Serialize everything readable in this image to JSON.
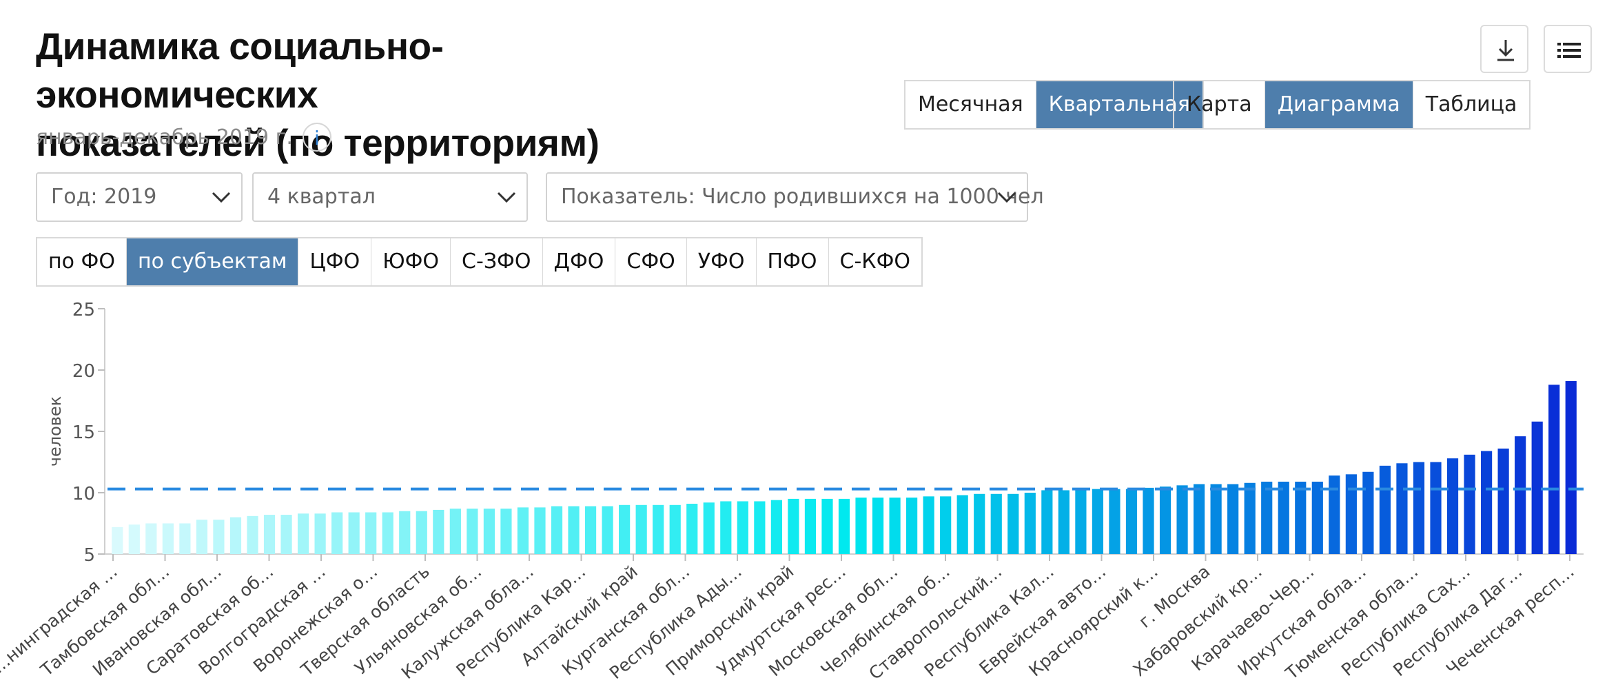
{
  "header": {
    "title_line1": "Динамика социально-экономических",
    "title_line2": "показателей (по территориям)",
    "period": "январь-декабрь 2019 г.",
    "info_icon": "i"
  },
  "toolbar": {
    "download_icon": "download-icon",
    "menu_icon": "list-menu-icon"
  },
  "periodicity": {
    "options": [
      "Месячная",
      "Квартальная"
    ],
    "active": 1
  },
  "view_mode": {
    "options": [
      "Карта",
      "Диаграмма",
      "Таблица"
    ],
    "active": 1
  },
  "filters": {
    "year": "Год: 2019",
    "quarter": "4 квартал",
    "indicator": "Показатель: Число родившихся на 1000 чел"
  },
  "region_tabs": {
    "items": [
      "по ФО",
      "по субъектам",
      "ЦФО",
      "ЮФО",
      "С-ЗФО",
      "ДФО",
      "СФО",
      "УФО",
      "ПФО",
      "С-КФО"
    ],
    "active": 1
  },
  "colors": {
    "accent": "#4e7eac",
    "average_line": "#2a8ae0",
    "bar_low": "#d9fafd",
    "bar_mid": "#00e9ef",
    "bar_high": "#0a2bd6"
  },
  "chart_data": {
    "type": "bar",
    "ylabel": "человек",
    "ylim": [
      5,
      25
    ],
    "yticks": [
      5,
      10,
      15,
      20,
      25
    ],
    "average": 10.3,
    "average_line": "dashed",
    "x_labels": [
      "…нинградская …",
      "Тамбовская обл…",
      "Ивановская обл…",
      "Саратовская об…",
      "Волгоградская …",
      "Воронежская о…",
      "Тверская область",
      "Ульяновская об…",
      "Калужская обла…",
      "Республика Кар…",
      "Алтайский край",
      "Курганская обл…",
      "Республика Ады…",
      "Приморский край",
      "Удмуртская рес…",
      "Московская обл…",
      "Челябинская об…",
      "Ставропольский…",
      "Республика Кал…",
      "Еврейская авто…",
      "Красноярский к…",
      "г. Москва",
      "Хабаровский кр…",
      "Карачаево-Чер…",
      "Иркутская обла…",
      "Тюменская обла…",
      "Республика Сах…",
      "Республика Даг…",
      "Чеченская респ…"
    ],
    "values": [
      7.2,
      7.4,
      7.5,
      7.5,
      7.5,
      7.8,
      7.8,
      8.0,
      8.1,
      8.2,
      8.2,
      8.3,
      8.3,
      8.4,
      8.4,
      8.4,
      8.4,
      8.5,
      8.5,
      8.6,
      8.7,
      8.7,
      8.7,
      8.7,
      8.8,
      8.8,
      8.9,
      8.9,
      8.9,
      8.9,
      9.0,
      9.0,
      9.0,
      9.0,
      9.1,
      9.2,
      9.3,
      9.3,
      9.3,
      9.4,
      9.5,
      9.5,
      9.5,
      9.5,
      9.6,
      9.6,
      9.6,
      9.6,
      9.7,
      9.7,
      9.8,
      9.9,
      9.9,
      9.9,
      10.0,
      10.2,
      10.2,
      10.3,
      10.3,
      10.3,
      10.3,
      10.4,
      10.5,
      10.6,
      10.7,
      10.7,
      10.7,
      10.8,
      10.9,
      10.9,
      10.9,
      10.9,
      11.4,
      11.5,
      11.7,
      12.2,
      12.4,
      12.5,
      12.5,
      12.8,
      13.1,
      13.4,
      13.6,
      14.6,
      15.8,
      18.8,
      19.1
    ]
  }
}
